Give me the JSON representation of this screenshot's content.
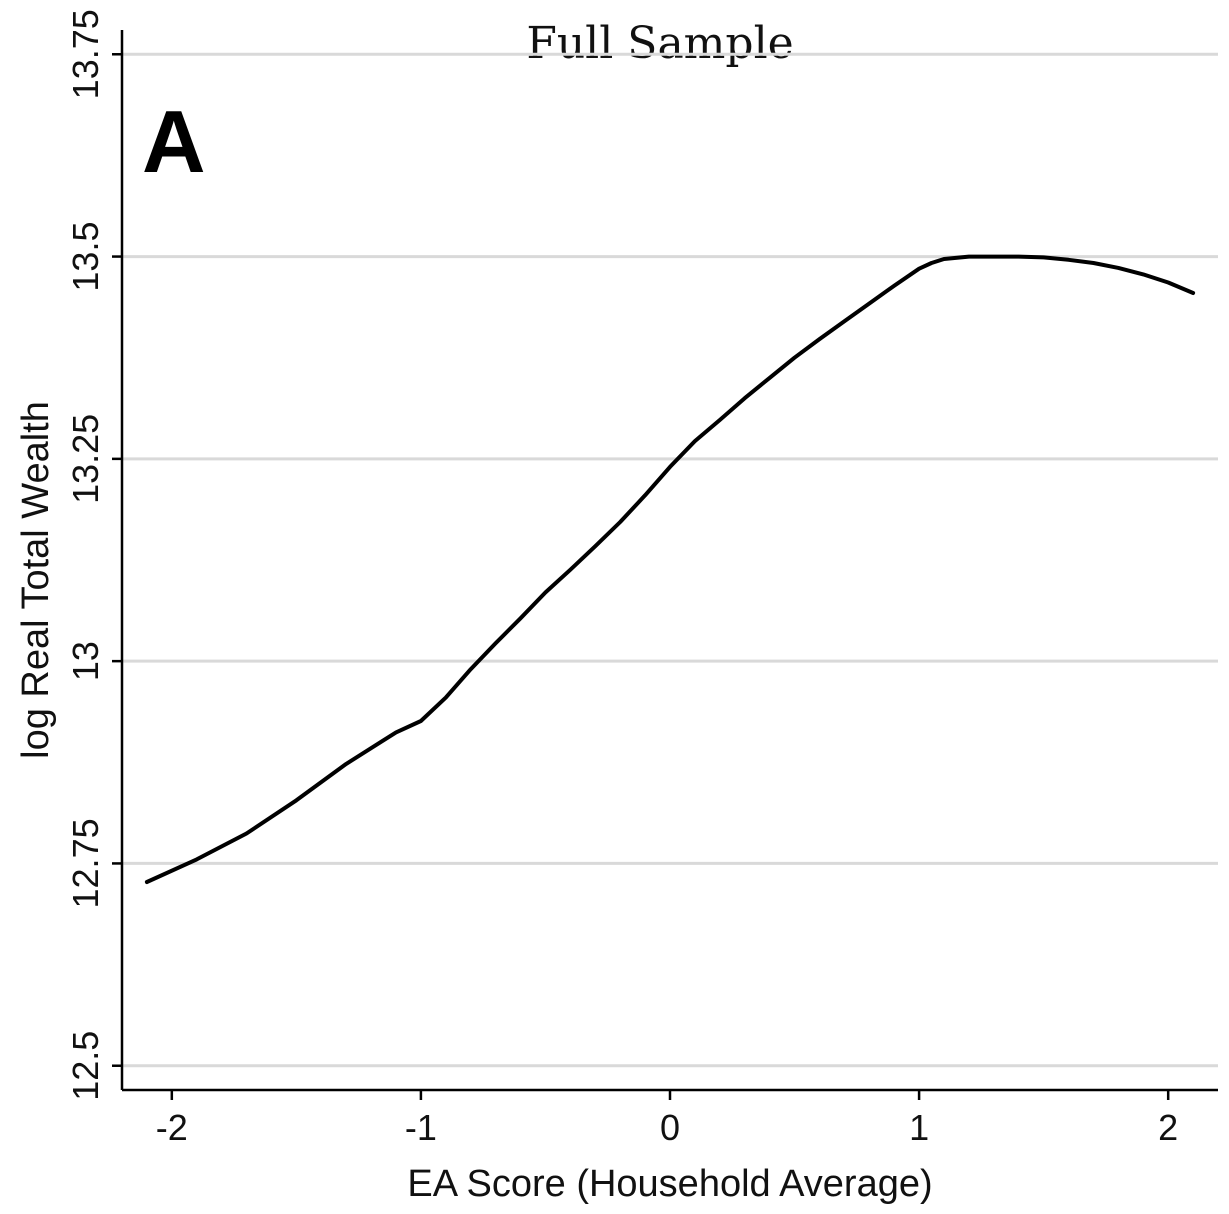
{
  "chart_data": {
    "type": "line",
    "title": "Full Sample",
    "panel_label": "A",
    "xlabel": "EA Score (Household Average)",
    "ylabel": "log Real Total Wealth",
    "xlim": [
      -2.2,
      2.2
    ],
    "ylim": [
      12.47,
      13.78
    ],
    "x_ticks": [
      -2,
      -1,
      0,
      1,
      2
    ],
    "x_tick_labels": [
      "-2",
      "-1",
      "0",
      "1",
      "2"
    ],
    "y_ticks": [
      12.5,
      12.75,
      13,
      13.25,
      13.5,
      13.75
    ],
    "y_tick_labels": [
      "12.5",
      "12.75",
      "13",
      "13.25",
      "13.5",
      "13.75"
    ],
    "grid": "horizontal",
    "legend": "none",
    "line_color": "#000000",
    "grid_color": "#d9d9d9",
    "series": [
      {
        "x": [
          -2.1,
          -1.9,
          -1.7,
          -1.5,
          -1.3,
          -1.1,
          -1.0,
          -0.9,
          -0.8,
          -0.7,
          -0.6,
          -0.5,
          -0.4,
          -0.3,
          -0.2,
          -0.1,
          0.0,
          0.1,
          0.2,
          0.3,
          0.4,
          0.5,
          0.6,
          0.7,
          0.8,
          0.9,
          1.0,
          1.05,
          1.1,
          1.2,
          1.3,
          1.4,
          1.5,
          1.6,
          1.7,
          1.8,
          1.9,
          2.0,
          2.1
        ],
        "y": [
          12.727,
          12.755,
          12.787,
          12.828,
          12.873,
          12.912,
          12.926,
          12.955,
          12.99,
          13.022,
          13.053,
          13.085,
          13.113,
          13.142,
          13.172,
          13.205,
          13.24,
          13.272,
          13.298,
          13.325,
          13.35,
          13.375,
          13.398,
          13.42,
          13.442,
          13.464,
          13.485,
          13.492,
          13.497,
          13.5,
          13.5,
          13.5,
          13.499,
          13.496,
          13.492,
          13.486,
          13.478,
          13.468,
          13.455
        ]
      }
    ]
  }
}
